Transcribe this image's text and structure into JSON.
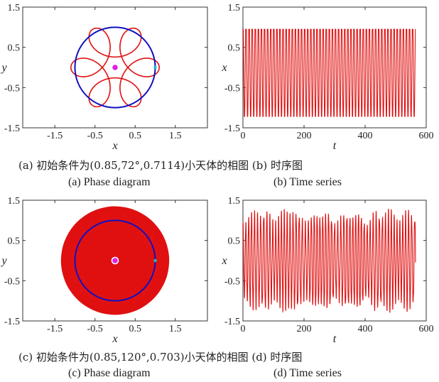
{
  "captions": {
    "row1_cn": "(a) 初始条件为(0.85,72°,0.7114)小天体的相图  (b) 时序图",
    "row1_a_en": "(a) Phase diagram",
    "row1_b_en": "(b) Time series",
    "row2_cn": "(c) 初始条件为(0.85,120°,0.703)小天体的相图  (d) 时序图",
    "row2_c_en": "(c) Phase diagram",
    "row2_d_en": "(d) Time series"
  },
  "colors": {
    "orbit": "#e01010",
    "circle": "#1010c0",
    "primary": "#e020e0",
    "secondary": "#10c0c0",
    "axis": "#333333"
  },
  "chart_data": [
    {
      "id": "a",
      "type": "line",
      "xlabel": "x",
      "ylabel": "y",
      "xlim": [
        -2.3,
        2.3
      ],
      "ylim": [
        -1.5,
        1.5
      ],
      "xticks": [
        "-1.5",
        "-0.5",
        "0.5",
        "1.5"
      ],
      "yticks": [
        "1.5",
        "0.5",
        "-0.5",
        "-1.5"
      ],
      "xtick_values": [
        -1.5,
        -0.5,
        0.5,
        1.5
      ],
      "ytick_values": [
        1.5,
        0.5,
        -0.5,
        -1.5
      ],
      "orbit": {
        "kind": "rosette",
        "a": 0.68,
        "b": 0.42,
        "petals": 5,
        "turns": 1
      },
      "reference_circle_radius": 1.0,
      "primary": [
        0,
        0
      ],
      "secondary": [
        1.0,
        0
      ]
    },
    {
      "id": "b",
      "type": "line",
      "xlabel": "t",
      "ylabel": "x",
      "xlim": [
        0,
        600
      ],
      "ylim": [
        -1.5,
        1.5
      ],
      "xticks": [
        "0",
        "200",
        "400",
        "600"
      ],
      "yticks": [
        "1.5",
        "0.5",
        "-0.5",
        "-1.5"
      ],
      "xtick_values": [
        0,
        200,
        400,
        600
      ],
      "ytick_values": [
        1.5,
        0.5,
        -0.5,
        -1.5
      ],
      "series": {
        "t_end": 565,
        "period": 10.1,
        "amp": 1.25,
        "mod": 0.0,
        "kind": "regular"
      }
    },
    {
      "id": "c",
      "type": "line",
      "xlabel": "x",
      "ylabel": "y",
      "xlim": [
        -2.3,
        2.3
      ],
      "ylim": [
        -1.5,
        1.5
      ],
      "xticks": [
        "-1.5",
        "-0.5",
        "0.5",
        "1.5"
      ],
      "yticks": [
        "1.5",
        "0.5",
        "-0.5",
        "-1.5"
      ],
      "xtick_values": [
        -1.5,
        -0.5,
        0.5,
        1.5
      ],
      "ytick_values": [
        1.5,
        0.5,
        -0.5,
        -1.5
      ],
      "orbit": {
        "kind": "dense",
        "a": 0.72,
        "b": 0.62,
        "petals": 7.31,
        "turns": 40
      },
      "reference_circle_radius": 1.0,
      "primary": [
        0,
        0
      ],
      "secondary": [
        1.0,
        0
      ]
    },
    {
      "id": "d",
      "type": "line",
      "xlabel": "t",
      "ylabel": "x",
      "xlim": [
        0,
        600
      ],
      "ylim": [
        -1.5,
        1.5
      ],
      "xticks": [
        "0",
        "200",
        "400",
        "600"
      ],
      "yticks": [
        "1.5",
        "0.5",
        "-0.5",
        "-1.5"
      ],
      "xtick_values": [
        0,
        200,
        400,
        600
      ],
      "ytick_values": [
        1.5,
        0.5,
        -0.5,
        -1.5
      ],
      "series": {
        "t_end": 565,
        "period": 9.7,
        "amp": 1.25,
        "mod": 0.3,
        "kind": "irregular"
      }
    }
  ]
}
